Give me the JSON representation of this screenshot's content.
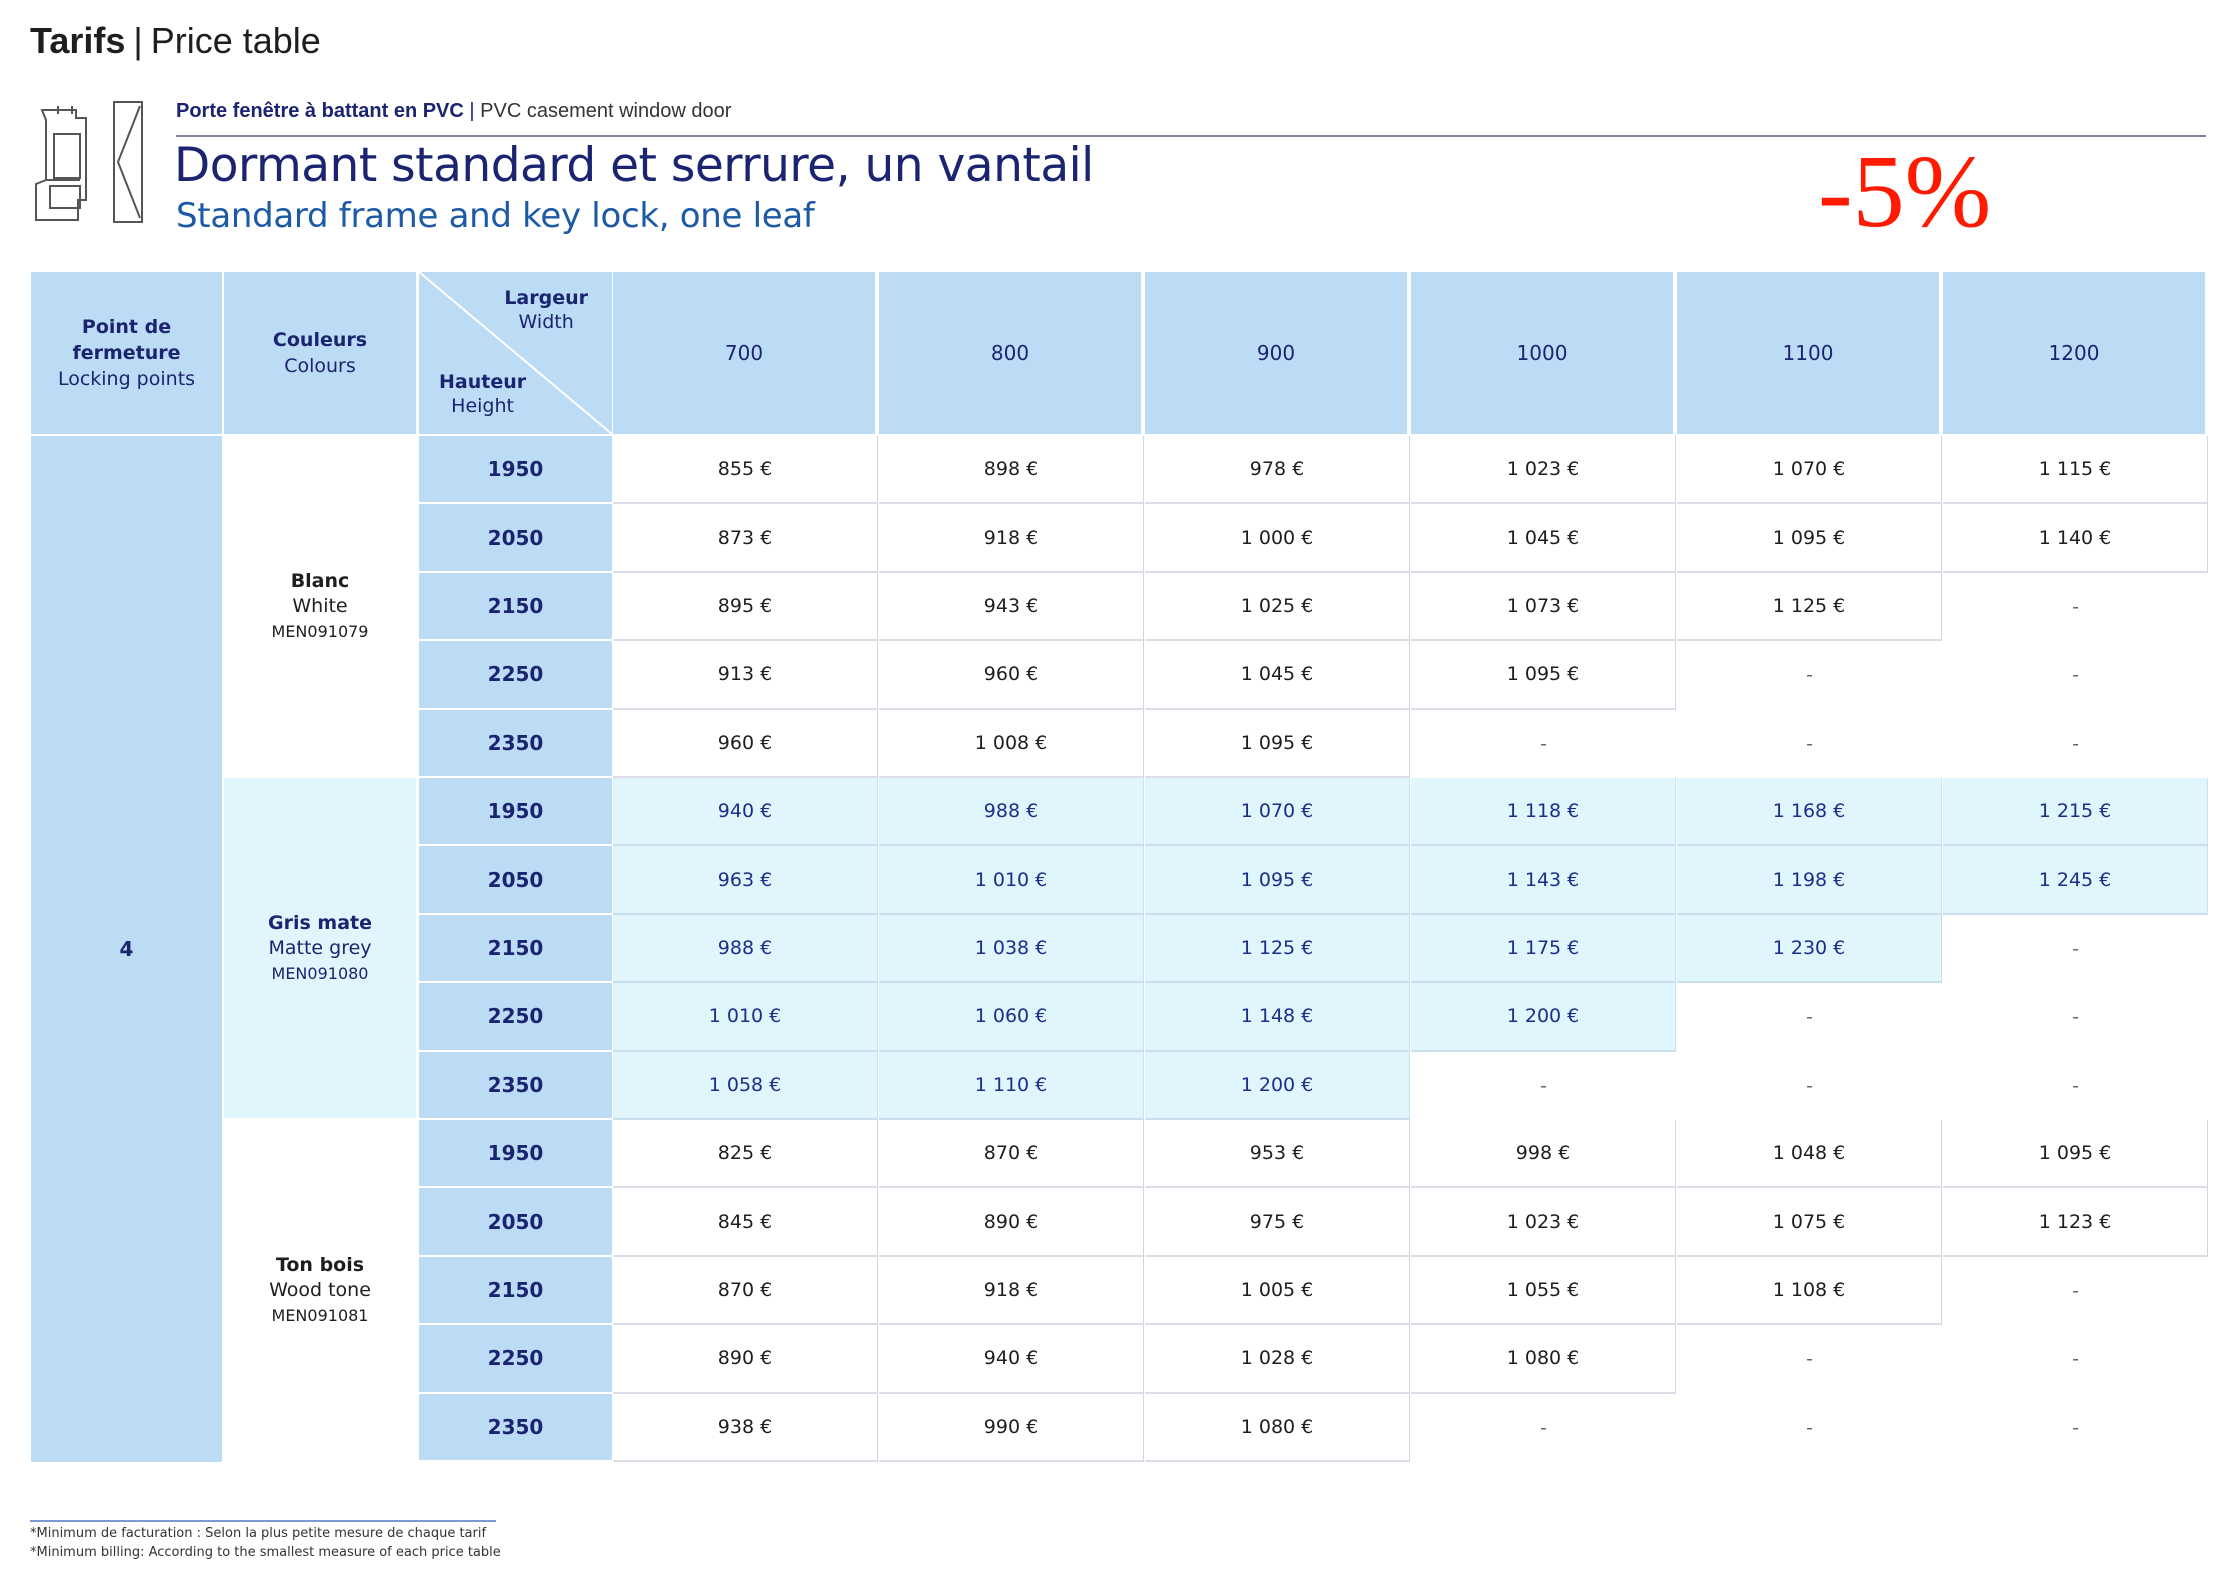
{
  "header": {
    "title_bold": "Tarifs",
    "title_sep": "|",
    "title_rest": "Price table"
  },
  "product": {
    "category_fr": "Porte fenêtre à battant en PVC",
    "category_sep": "|",
    "category_en": "PVC casement window door",
    "title_fr": "Dormant standard et serrure, un vantail",
    "title_en": "Standard frame and key lock, one leaf",
    "discount": "-5%",
    "icon": "window-door-profile-icon"
  },
  "colors": {
    "header_bg": "#bcdcf5",
    "grey_row_bg": "#e0f5fc",
    "title_navy": "#1b2470",
    "subtitle_blue": "#1d5aa6",
    "discount_red": "#ff1a00"
  },
  "table": {
    "headers": {
      "locking_fr": "Point de fermeture",
      "locking_en": "Locking points",
      "colours_fr": "Couleurs",
      "colours_en": "Colours",
      "width_fr": "Largeur",
      "width_en": "Width",
      "height_fr": "Hauteur",
      "height_en": "Height"
    },
    "widths": [
      "700",
      "800",
      "900",
      "1000",
      "1100",
      "1200"
    ],
    "locking_points": "4",
    "groups": [
      {
        "name_fr": "Blanc",
        "name_en": "White",
        "code": "MEN091079",
        "style": "white",
        "rows": [
          {
            "height": "1950",
            "prices": [
              "855 €",
              "898 €",
              "978 €",
              "1 023 €",
              "1 070 €",
              "1 115 €"
            ]
          },
          {
            "height": "2050",
            "prices": [
              "873 €",
              "918 €",
              "1 000 €",
              "1 045 €",
              "1 095 €",
              "1 140 €"
            ]
          },
          {
            "height": "2150",
            "prices": [
              "895 €",
              "943 €",
              "1 025 €",
              "1 073 €",
              "1 125 €",
              "-"
            ]
          },
          {
            "height": "2250",
            "prices": [
              "913 €",
              "960 €",
              "1 045 €",
              "1 095 €",
              "-",
              "-"
            ]
          },
          {
            "height": "2350",
            "prices": [
              "960 €",
              "1 008 €",
              "1 095 €",
              "-",
              "-",
              "-"
            ]
          }
        ]
      },
      {
        "name_fr": "Gris mate",
        "name_en": "Matte grey",
        "code": "MEN091080",
        "style": "grey",
        "rows": [
          {
            "height": "1950",
            "prices": [
              "940 €",
              "988 €",
              "1 070 €",
              "1 118 €",
              "1 168 €",
              "1 215 €"
            ]
          },
          {
            "height": "2050",
            "prices": [
              "963 €",
              "1 010 €",
              "1 095 €",
              "1 143 €",
              "1 198 €",
              "1 245 €"
            ]
          },
          {
            "height": "2150",
            "prices": [
              "988 €",
              "1 038 €",
              "1 125 €",
              "1 175 €",
              "1 230 €",
              "-"
            ]
          },
          {
            "height": "2250",
            "prices": [
              "1 010 €",
              "1 060 €",
              "1 148 €",
              "1 200 €",
              "-",
              "-"
            ]
          },
          {
            "height": "2350",
            "prices": [
              "1 058 €",
              "1 110 €",
              "1 200 €",
              "-",
              "-",
              "-"
            ]
          }
        ]
      },
      {
        "name_fr": "Ton bois",
        "name_en": "Wood tone",
        "code": "MEN091081",
        "style": "white",
        "rows": [
          {
            "height": "1950",
            "prices": [
              "825 €",
              "870 €",
              "953 €",
              "998 €",
              "1 048 €",
              "1 095 €"
            ]
          },
          {
            "height": "2050",
            "prices": [
              "845 €",
              "890 €",
              "975 €",
              "1 023 €",
              "1 075 €",
              "1 123 €"
            ]
          },
          {
            "height": "2150",
            "prices": [
              "870 €",
              "918 €",
              "1 005 €",
              "1 055 €",
              "1 108 €",
              "-"
            ]
          },
          {
            "height": "2250",
            "prices": [
              "890 €",
              "940 €",
              "1 028 €",
              "1 080 €",
              "-",
              "-"
            ]
          },
          {
            "height": "2350",
            "prices": [
              "938 €",
              "990 €",
              "1 080 €",
              "-",
              "-",
              "-"
            ]
          }
        ]
      }
    ]
  },
  "footnote": {
    "fr": "*Minimum de facturation : Selon la plus petite mesure de chaque tarif",
    "en": "*Minimum billing: According to the smallest measure of each price table"
  }
}
